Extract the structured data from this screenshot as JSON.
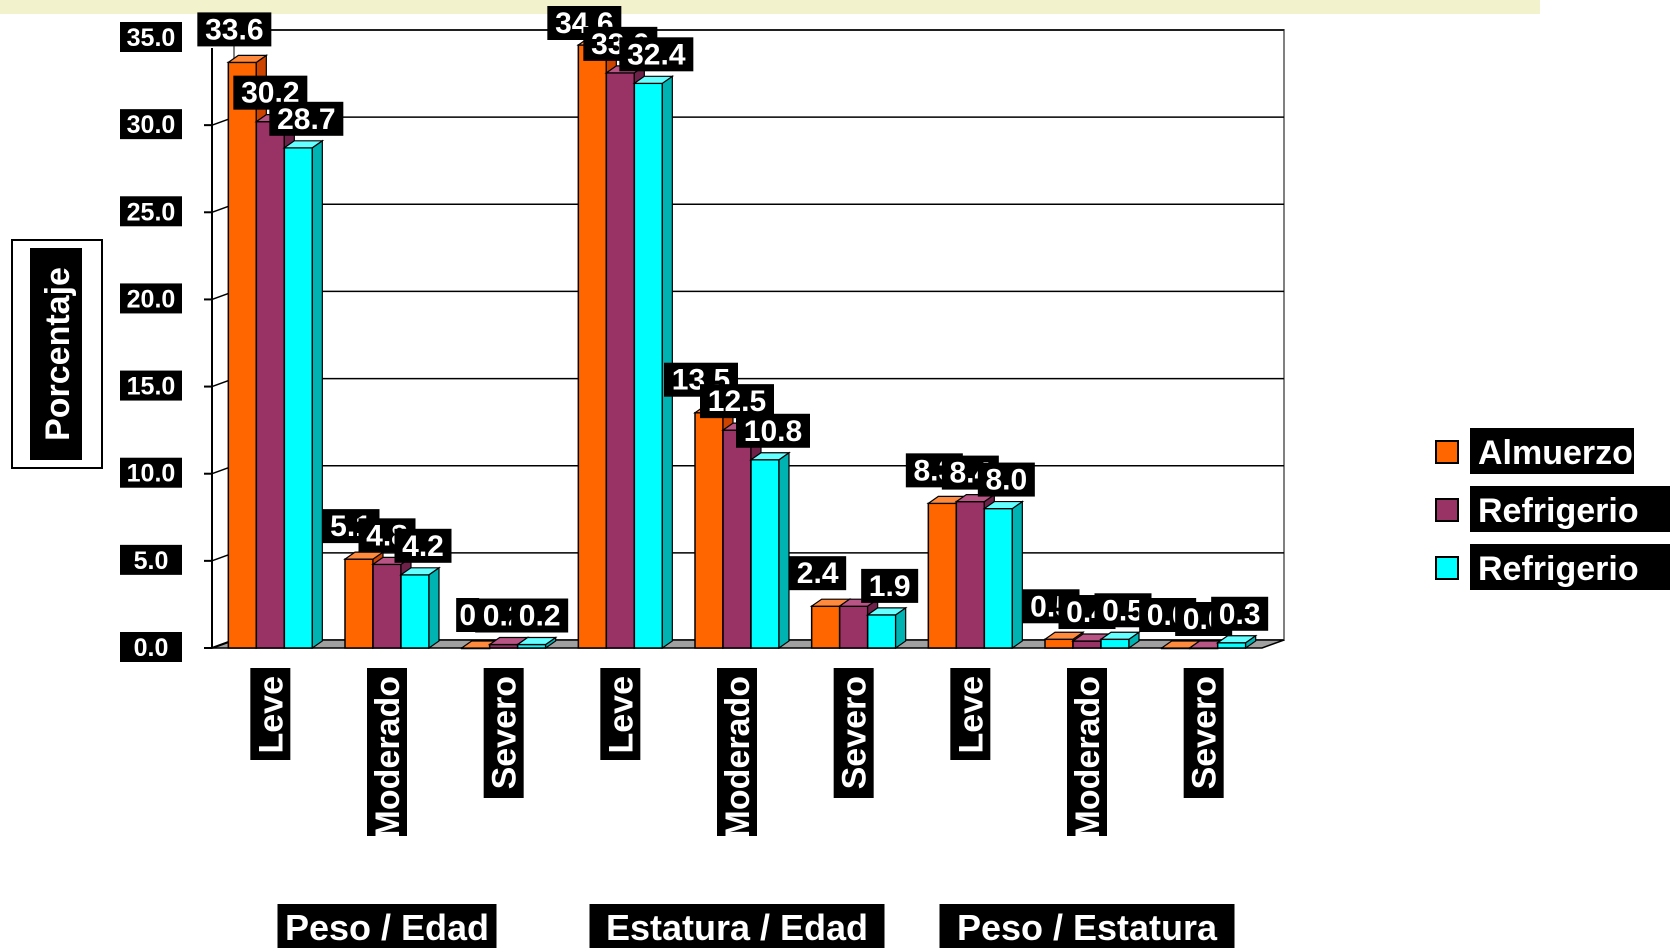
{
  "chart_data": {
    "type": "bar",
    "title": "",
    "ylabel": "Porcentaje",
    "xlabel": "",
    "ylim": [
      0,
      35
    ],
    "yticks": [
      "0.0",
      "5.0",
      "10.0",
      "15.0",
      "20.0",
      "25.0",
      "30.0",
      "35.0"
    ],
    "grid": true,
    "legend_position": "right",
    "groups": [
      {
        "label": "Peso / Edad",
        "categories": [
          "Leve",
          "Moderado",
          "Severo"
        ]
      },
      {
        "label": "Estatura / Edad",
        "categories": [
          "Leve",
          "Moderado",
          "Severo"
        ]
      },
      {
        "label": "Peso / Estatura",
        "categories": [
          "Leve",
          "Moderado",
          "Severo"
        ]
      }
    ],
    "categories": [
      "Leve",
      "Moderado",
      "Severo",
      "Leve",
      "Moderado",
      "Severo",
      "Leve",
      "Moderado",
      "Severo"
    ],
    "series": [
      {
        "name": "Almuerzo",
        "color": "#ff6600",
        "values": [
          33.6,
          5.1,
          0.0,
          34.6,
          13.5,
          2.4,
          8.3,
          0.5,
          0.0
        ],
        "labels": [
          "33.6",
          "5.1",
          "0",
          "34.6",
          "13.5",
          "2.4",
          "8.3",
          "0.5",
          "0.0"
        ]
      },
      {
        "name": "Refrigerio",
        "color": "#993366",
        "values": [
          30.2,
          4.8,
          0.2,
          33.0,
          12.5,
          2.4,
          8.4,
          0.4,
          0.0
        ],
        "labels": [
          "30.2",
          "4.8",
          "0.2",
          "33.0",
          "12.5",
          "",
          "8.4",
          "0.4",
          "0.0"
        ]
      },
      {
        "name": "Refrigerio",
        "color": "#00ffff",
        "values": [
          28.7,
          4.2,
          0.2,
          32.4,
          10.8,
          1.9,
          8.0,
          0.5,
          0.3
        ],
        "labels": [
          "28.7",
          "4.2",
          "0.2",
          "32.4",
          "10.8",
          "1.9",
          "8.0",
          "0.5",
          "0.3"
        ]
      }
    ]
  }
}
